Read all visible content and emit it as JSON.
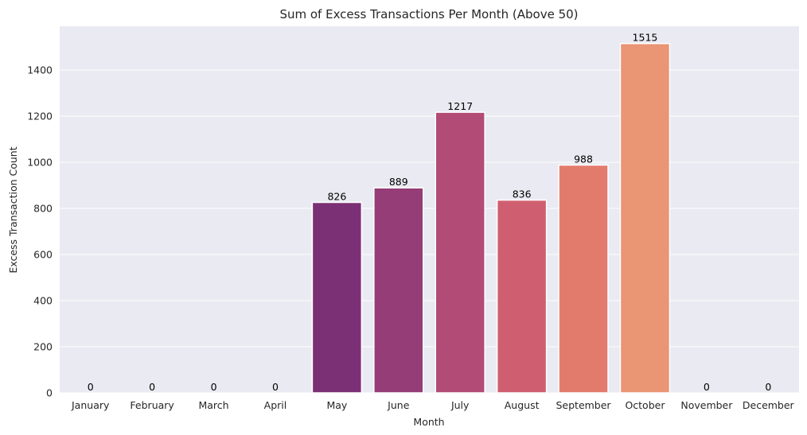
{
  "chart_data": {
    "type": "bar",
    "title": "Sum of Excess Transactions Per Month (Above 50)",
    "xlabel": "Month",
    "ylabel": "Excess Transaction Count",
    "categories": [
      "January",
      "February",
      "March",
      "April",
      "May",
      "June",
      "July",
      "August",
      "September",
      "October",
      "November",
      "December"
    ],
    "values": [
      0,
      0,
      0,
      0,
      826,
      889,
      1217,
      836,
      988,
      1515,
      0,
      0
    ],
    "value_labels": [
      "0",
      "0",
      "0",
      "0",
      "826",
      "889",
      "1217",
      "836",
      "988",
      "1515",
      "0",
      "0"
    ],
    "yticks": [
      0,
      200,
      400,
      600,
      800,
      1000,
      1200,
      1400
    ],
    "ytick_labels": [
      "0",
      "200",
      "400",
      "600",
      "800",
      "1000",
      "1200",
      "1400"
    ],
    "ylim": [
      0,
      1590
    ],
    "grid": true,
    "legend": "none",
    "colors": [
      "#3b0f70",
      "#4f1077",
      "#641a80",
      "#7a2c74",
      "#7b3075",
      "#953d77",
      "#b24c77",
      "#cf5f70",
      "#e37b6d",
      "#ea9574",
      "#f2b17f",
      "#f7cd94"
    ],
    "background": "#eaeaf2"
  }
}
